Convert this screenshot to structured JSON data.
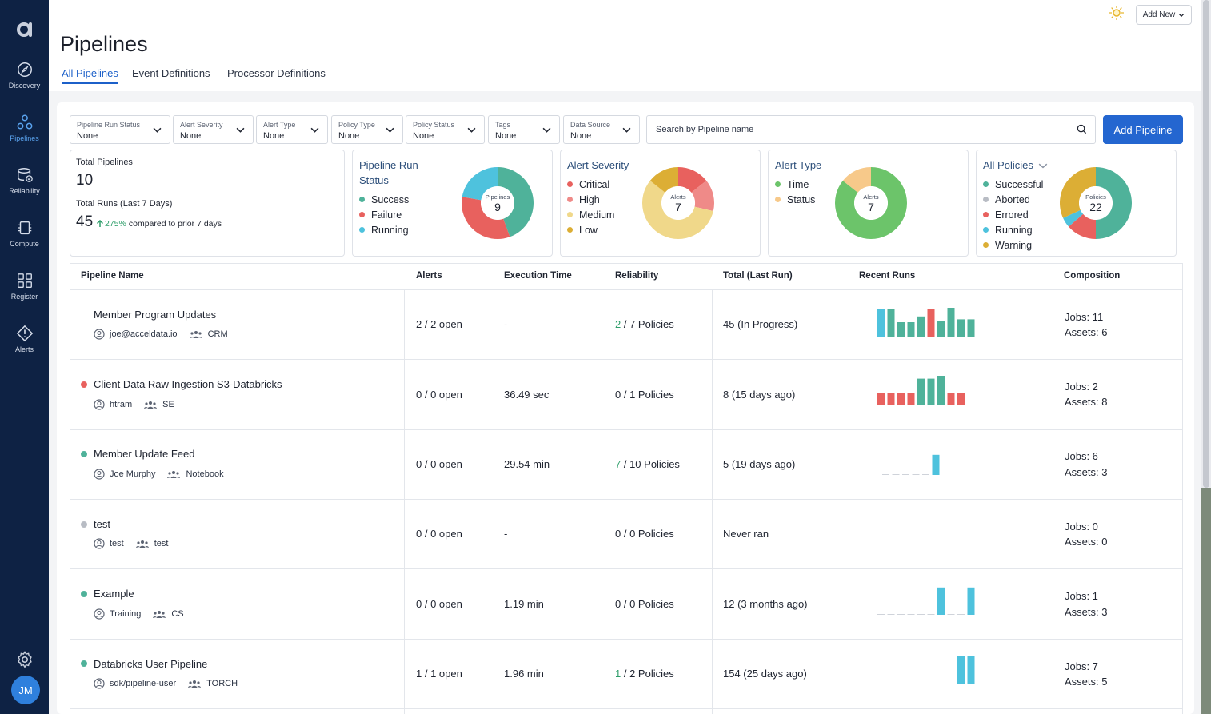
{
  "nav": {
    "items": [
      {
        "label": "Discovery",
        "icon": "compass-icon"
      },
      {
        "label": "Pipelines",
        "icon": "pipelines-icon"
      },
      {
        "label": "Reliability",
        "icon": "reliability-icon"
      },
      {
        "label": "Compute",
        "icon": "chip-icon"
      },
      {
        "label": "Register",
        "icon": "register-icon"
      },
      {
        "label": "Alerts",
        "icon": "alert-icon"
      }
    ],
    "avatar_initials": "JM"
  },
  "header": {
    "title": "Pipelines",
    "add_new": "Add New",
    "tabs": [
      {
        "label": "All Pipelines"
      },
      {
        "label": "Event Definitions"
      },
      {
        "label": "Processor Definitions"
      }
    ]
  },
  "filters": [
    {
      "label": "Pipeline Run Status",
      "value": "None"
    },
    {
      "label": "Alert Severity",
      "value": "None"
    },
    {
      "label": "Alert Type",
      "value": "None"
    },
    {
      "label": "Policy Type",
      "value": "None"
    },
    {
      "label": "Policy Status",
      "value": "None"
    },
    {
      "label": "Tags",
      "value": "None"
    },
    {
      "label": "Data Source",
      "value": "None"
    }
  ],
  "search": {
    "placeholder": "Search by Pipeline name"
  },
  "add_pipeline": "Add Pipeline",
  "summary": {
    "total_pipelines_label": "Total Pipelines",
    "total_pipelines": "10",
    "total_runs_label": "Total Runs (Last 7 Days)",
    "total_runs": "45",
    "change_pct": "275%",
    "change_text": "compared to prior 7 days"
  },
  "charts": {
    "run_status": {
      "title_line1": "Pipeline Run",
      "title_line2": "Status",
      "center_label": "Pipelines",
      "center_value": "9",
      "legend": [
        {
          "label": "Success",
          "color": "#4fb29a",
          "value": 4
        },
        {
          "label": "Failure",
          "color": "#e8615e",
          "value": 3
        },
        {
          "label": "Running",
          "color": "#4ec2dd",
          "value": 2
        }
      ]
    },
    "alert_severity": {
      "title": "Alert Severity",
      "center_label": "Alerts",
      "center_value": "7",
      "legend": [
        {
          "label": "Critical",
          "color": "#e8615e",
          "value": 1
        },
        {
          "label": "High",
          "color": "#ef8a88",
          "value": 1
        },
        {
          "label": "Medium",
          "color": "#f0d88a",
          "value": 4
        },
        {
          "label": "Low",
          "color": "#dcae35",
          "value": 1
        }
      ]
    },
    "alert_type": {
      "title": "Alert Type",
      "center_label": "Alerts",
      "center_value": "7",
      "legend": [
        {
          "label": "Time",
          "color": "#6cc46a",
          "value": 6
        },
        {
          "label": "Status",
          "color": "#f7c98a",
          "value": 1
        }
      ]
    },
    "policies": {
      "title": "All Policies",
      "center_label": "Policies",
      "center_value": "22",
      "legend": [
        {
          "label": "Successful",
          "color": "#4fb29a",
          "value": 11
        },
        {
          "label": "Aborted",
          "color": "#b8bcc4",
          "value": 0
        },
        {
          "label": "Errored",
          "color": "#e8615e",
          "value": 3
        },
        {
          "label": "Running",
          "color": "#4ec2dd",
          "value": 1
        },
        {
          "label": "Warning",
          "color": "#dcae35",
          "value": 7
        }
      ]
    }
  },
  "table": {
    "headers": [
      "Pipeline Name",
      "Alerts",
      "Execution Time",
      "Reliability",
      "Total (Last Run)",
      "Recent Runs",
      "Composition"
    ],
    "rows": [
      {
        "name": "Member Program Updates",
        "status": "none",
        "owner": "joe@acceldata.io",
        "team": "CRM",
        "alerts": "2 / 2 open",
        "exec": "-",
        "rel_pass": "2",
        "rel_rest": " / 7 Policies",
        "rel_highlight": true,
        "total": "45 (In Progress)",
        "jobs": "Jobs: 11",
        "assets": "Assets: 6",
        "runs": [
          {
            "v": 0.95,
            "c": "#4ec2dd"
          },
          {
            "v": 0.95,
            "c": "#4fb29a"
          },
          {
            "v": 0.5,
            "c": "#4fb29a"
          },
          {
            "v": 0.5,
            "c": "#4fb29a"
          },
          {
            "v": 0.7,
            "c": "#4fb29a"
          },
          {
            "v": 0.95,
            "c": "#e8615e"
          },
          {
            "v": 0.55,
            "c": "#4fb29a"
          },
          {
            "v": 1.0,
            "c": "#4fb29a"
          },
          {
            "v": 0.6,
            "c": "#4fb29a"
          },
          {
            "v": 0.6,
            "c": "#4fb29a"
          }
        ]
      },
      {
        "name": "Client Data Raw Ingestion S3-Databricks",
        "status": "#e8615e",
        "owner": "htram",
        "team": "SE",
        "alerts": "0 / 0 open",
        "exec": "36.49 sec",
        "rel_pass": "0",
        "rel_rest": " / 1 Policies",
        "rel_highlight": false,
        "total": "8 (15 days ago)",
        "jobs": "Jobs: 2",
        "assets": "Assets: 8",
        "runs": [
          {
            "v": 0.4,
            "c": "#e8615e"
          },
          {
            "v": 0.4,
            "c": "#e8615e"
          },
          {
            "v": 0.4,
            "c": "#e8615e"
          },
          {
            "v": 0.4,
            "c": "#e8615e"
          },
          {
            "v": 0.9,
            "c": "#4fb29a"
          },
          {
            "v": 0.9,
            "c": "#4fb29a"
          },
          {
            "v": 1.0,
            "c": "#4fb29a"
          },
          {
            "v": 0.4,
            "c": "#e8615e"
          },
          {
            "v": 0.4,
            "c": "#e8615e"
          }
        ]
      },
      {
        "name": "Member Update Feed",
        "status": "#4fb29a",
        "owner": "Joe Murphy",
        "team": "Notebook",
        "alerts": "0 / 0 open",
        "exec": "29.54 min",
        "rel_pass": "7",
        "rel_rest": " / 10 Policies",
        "rel_highlight": true,
        "total": "5 (19 days ago)",
        "jobs": "Jobs: 6",
        "assets": "Assets: 3",
        "runs": [
          {
            "v": 0,
            "c": "#cfd3da"
          },
          {
            "v": 0,
            "c": "#cfd3da"
          },
          {
            "v": 0,
            "c": "#cfd3da"
          },
          {
            "v": 0,
            "c": "#cfd3da"
          },
          {
            "v": 0,
            "c": "#cfd3da"
          },
          {
            "v": 0.7,
            "c": "#4ec2dd"
          }
        ]
      },
      {
        "name": "test",
        "status": "#b8bcc4",
        "owner": "test",
        "team": "test",
        "alerts": "0 / 0 open",
        "exec": "-",
        "rel_pass": "0",
        "rel_rest": " / 0 Policies",
        "rel_highlight": false,
        "total": "Never ran",
        "jobs": "Jobs: 0",
        "assets": "Assets: 0",
        "runs": []
      },
      {
        "name": "Example",
        "status": "#4fb29a",
        "owner": "Training",
        "team": "CS",
        "alerts": "0 / 0 open",
        "exec": "1.19 min",
        "rel_pass": "0",
        "rel_rest": " / 0 Policies",
        "rel_highlight": false,
        "total": "12 (3 months ago)",
        "jobs": "Jobs: 1",
        "assets": "Assets: 3",
        "runs": [
          {
            "v": 0,
            "c": "#cfd3da"
          },
          {
            "v": 0,
            "c": "#cfd3da"
          },
          {
            "v": 0,
            "c": "#cfd3da"
          },
          {
            "v": 0,
            "c": "#cfd3da"
          },
          {
            "v": 0,
            "c": "#cfd3da"
          },
          {
            "v": 0,
            "c": "#cfd3da"
          },
          {
            "v": 0.95,
            "c": "#4ec2dd"
          },
          {
            "v": 0,
            "c": "#cfd3da"
          },
          {
            "v": 0,
            "c": "#cfd3da"
          },
          {
            "v": 0.95,
            "c": "#4ec2dd"
          }
        ]
      },
      {
        "name": "Databricks User Pipeline",
        "status": "#4fb29a",
        "owner": "sdk/pipeline-user",
        "team": "TORCH",
        "alerts": "1 / 1 open",
        "exec": "1.96 min",
        "rel_pass": "1",
        "rel_rest": " / 2 Policies",
        "rel_highlight": true,
        "total": "154 (25 days ago)",
        "jobs": "Jobs: 7",
        "assets": "Assets: 5",
        "runs": [
          {
            "v": 0,
            "c": "#cfd3da"
          },
          {
            "v": 0,
            "c": "#cfd3da"
          },
          {
            "v": 0,
            "c": "#cfd3da"
          },
          {
            "v": 0,
            "c": "#cfd3da"
          },
          {
            "v": 0,
            "c": "#cfd3da"
          },
          {
            "v": 0,
            "c": "#cfd3da"
          },
          {
            "v": 0,
            "c": "#cfd3da"
          },
          {
            "v": 0,
            "c": "#cfd3da"
          },
          {
            "v": 1.0,
            "c": "#4ec2dd"
          },
          {
            "v": 1.0,
            "c": "#4ec2dd"
          }
        ]
      }
    ]
  }
}
